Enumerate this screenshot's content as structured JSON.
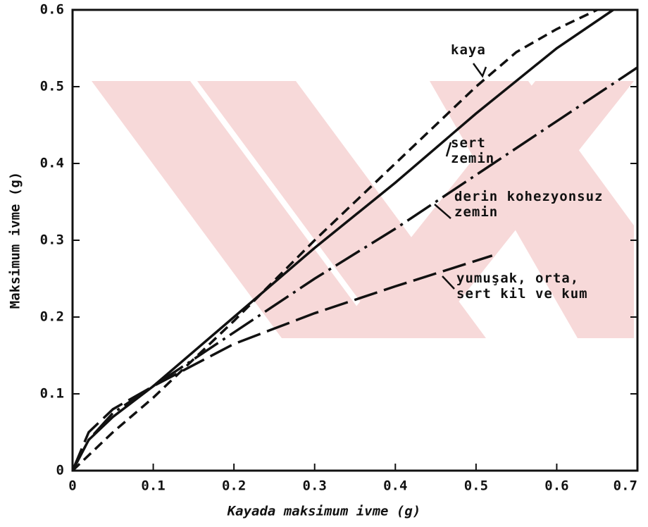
{
  "chart_data": {
    "type": "line",
    "x_label": "Kayada maksimum ivme (g)",
    "y_label": "Maksimum ivme (g)",
    "xlim": [
      0,
      0.7
    ],
    "ylim": [
      0,
      0.6
    ],
    "xticks": [
      0,
      0.1,
      0.2,
      0.3,
      0.4,
      0.5,
      0.6,
      0.7
    ],
    "yticks": [
      0,
      0.1,
      0.2,
      0.3,
      0.4,
      0.5,
      0.6
    ],
    "series": [
      {
        "name": "kaya",
        "color": "#111111",
        "dash": "14 8",
        "x": [
          0,
          0.05,
          0.1,
          0.2,
          0.3,
          0.4,
          0.5,
          0.55,
          0.6,
          0.65
        ],
        "values": [
          0,
          0.05,
          0.095,
          0.195,
          0.3,
          0.4,
          0.5,
          0.545,
          0.575,
          0.6
        ]
      },
      {
        "name": "sert zemin",
        "color": "#111111",
        "dash": "none",
        "x": [
          0,
          0.02,
          0.05,
          0.1,
          0.2,
          0.3,
          0.4,
          0.5,
          0.6,
          0.67
        ],
        "values": [
          0,
          0.04,
          0.07,
          0.11,
          0.2,
          0.29,
          0.375,
          0.465,
          0.55,
          0.6
        ]
      },
      {
        "name": "derin kohezyonsuz zemin",
        "color": "#111111",
        "dash": "40 8 4 8",
        "x": [
          0,
          0.02,
          0.05,
          0.1,
          0.2,
          0.3,
          0.4,
          0.5,
          0.6,
          0.7
        ],
        "values": [
          0,
          0.04,
          0.075,
          0.11,
          0.18,
          0.25,
          0.315,
          0.385,
          0.455,
          0.525
        ]
      },
      {
        "name": "yumuşak, orta, sert kil ve kum",
        "color": "#111111",
        "dash": "34 10",
        "x": [
          0,
          0.02,
          0.05,
          0.1,
          0.2,
          0.3,
          0.4,
          0.52
        ],
        "values": [
          0,
          0.05,
          0.08,
          0.11,
          0.165,
          0.205,
          0.24,
          0.28
        ]
      }
    ]
  }
}
